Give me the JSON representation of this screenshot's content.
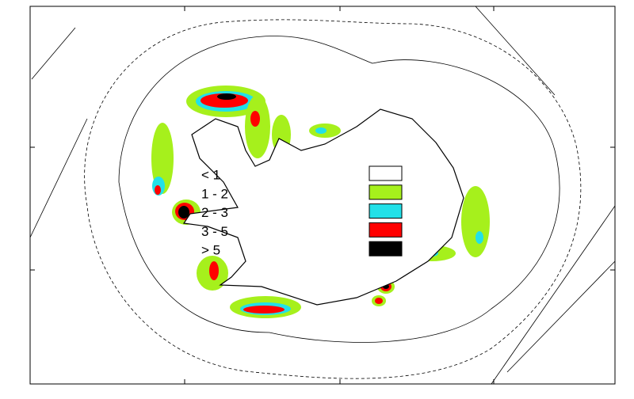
{
  "legend": [
    {
      "label": "< 1",
      "color": "#ffffff"
    },
    {
      "label": "1 - 2",
      "color": "#a6f01c"
    },
    {
      "label": "2 - 3",
      "color": "#22e0e8"
    },
    {
      "label": "3 - 5",
      "color": "#ff0000"
    },
    {
      "label": "> 5",
      "color": "#000000"
    }
  ]
}
